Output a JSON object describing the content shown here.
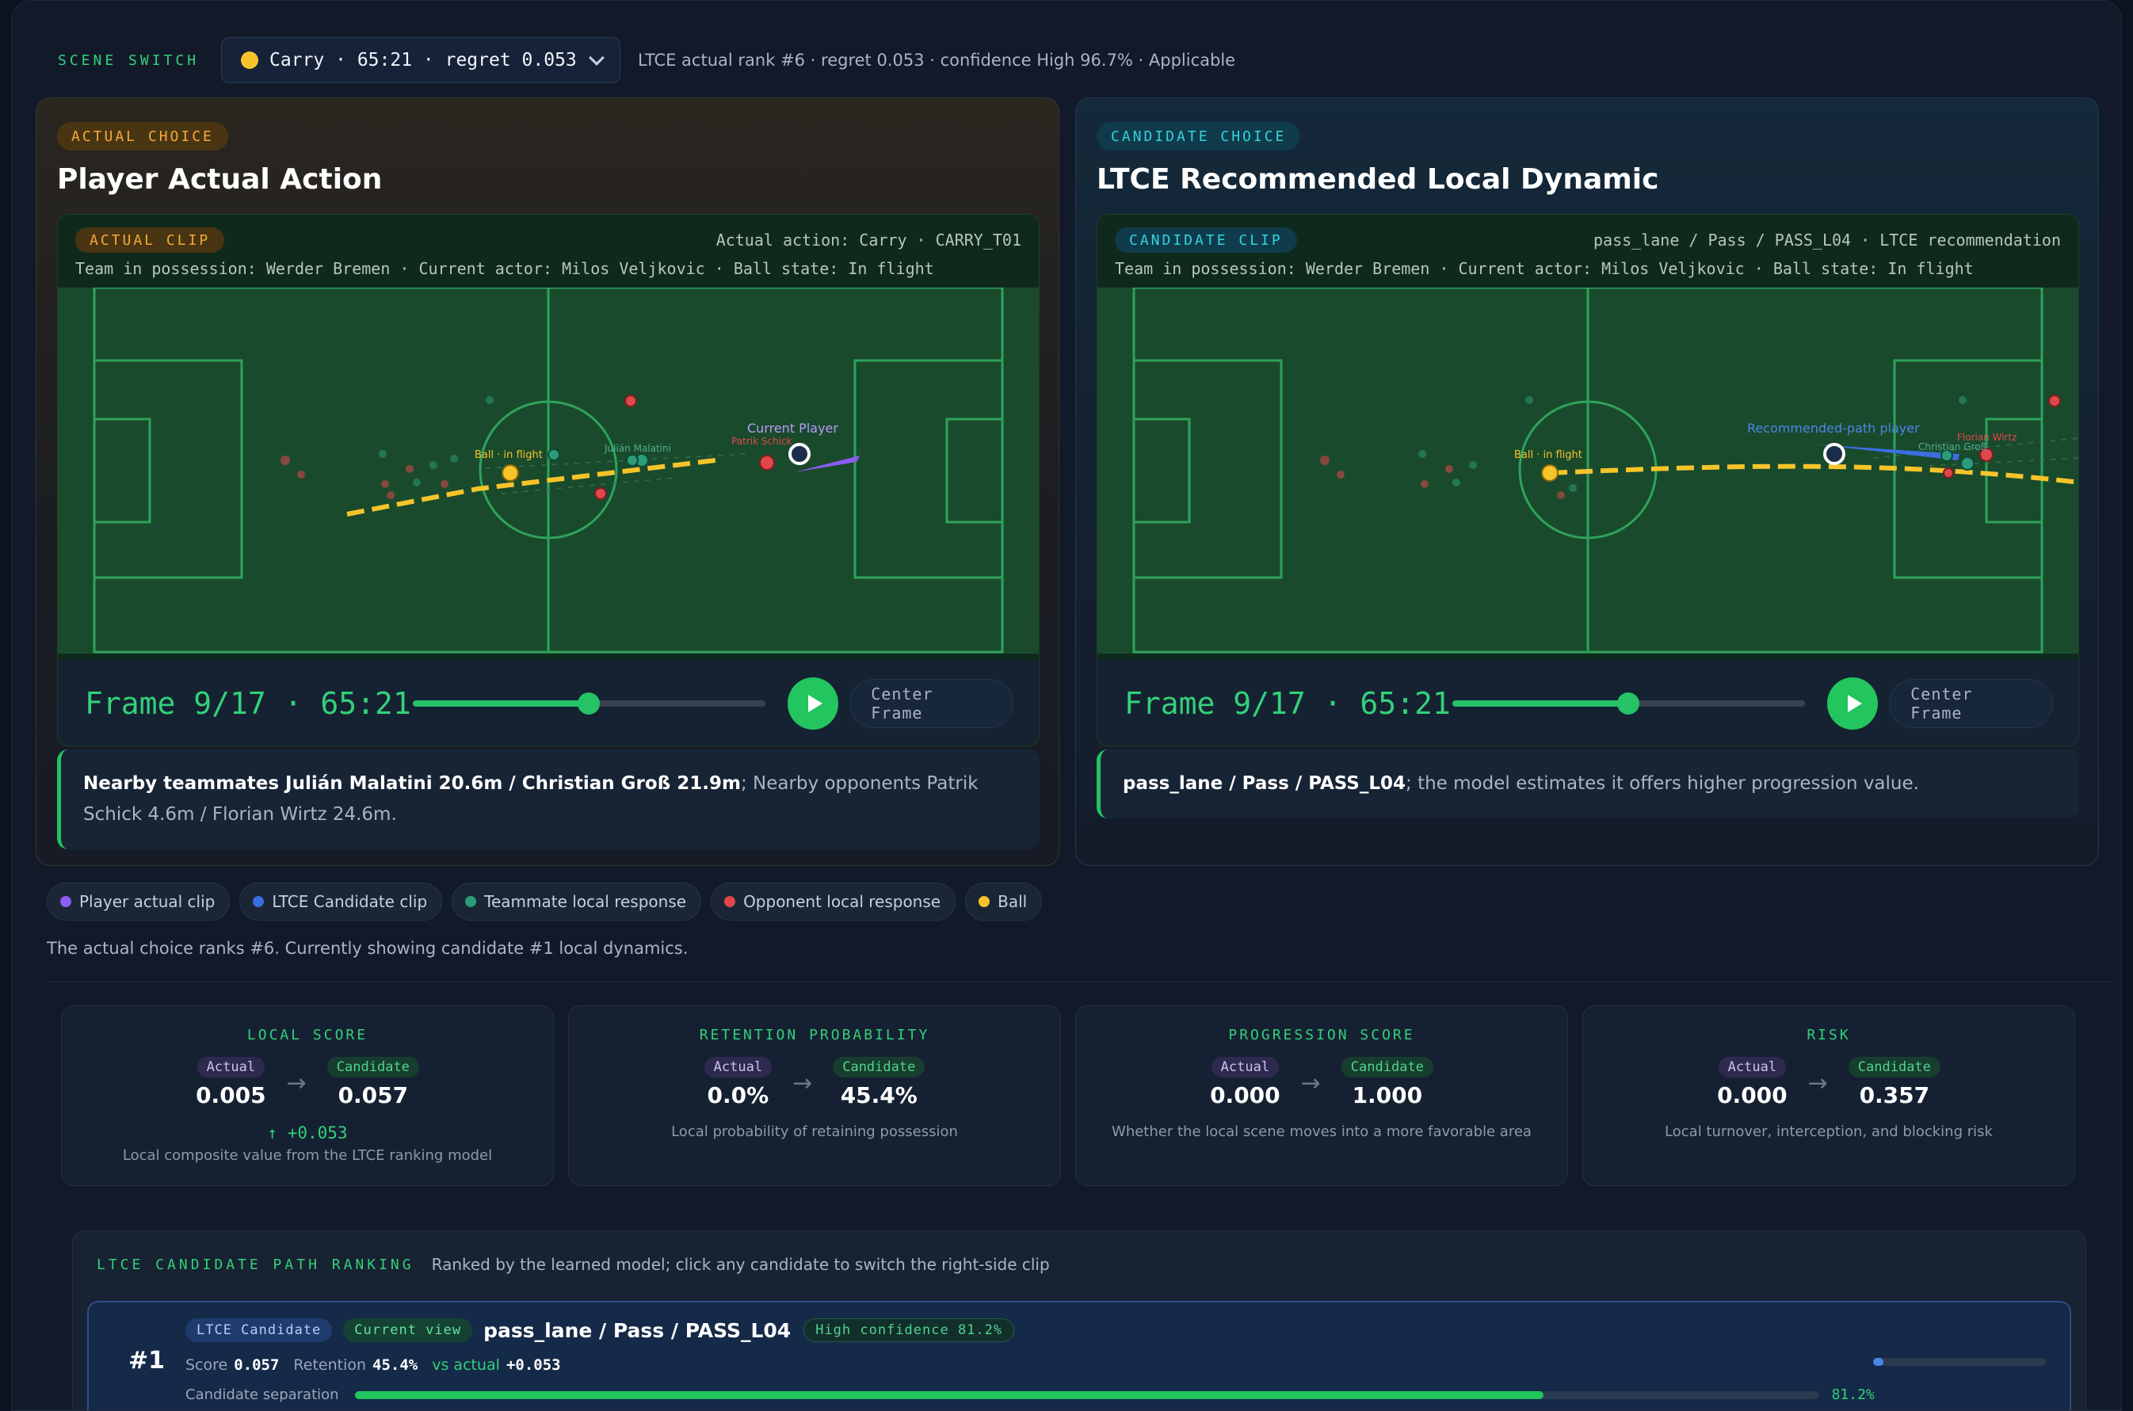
{
  "scene": {
    "label": "SCENE SWITCH",
    "selected": "Carry · 65:21 · regret 0.053",
    "meta": "LTCE actual rank #6 · regret 0.053 · confidence High 96.7% · Applicable"
  },
  "actual_panel": {
    "badge": "ACTUAL CHOICE",
    "title": "Player Actual Action",
    "clip_badge": "ACTUAL CLIP",
    "clip_right": "Actual action: Carry · CARRY_T01",
    "clip_info": "Team in possession: Werder Bremen · Current actor: Milos Veljkovic · Ball state: In flight",
    "pitch_labels": {
      "ball": "Ball · in flight",
      "current_player": "Current Player",
      "teammate": "Julián Malatini",
      "opponent": "Patrik Schick"
    },
    "frame": "Frame 9/17 · 65:21",
    "progress": 0.5,
    "center_label": "Center Frame",
    "note_bold": "Nearby teammates Julián Malatini 20.6m / Christian Groß 21.9m",
    "note_rest": "; Nearby opponents Patrik Schick 4.6m / Florian Wirtz 24.6m."
  },
  "candidate_panel": {
    "badge": "CANDIDATE CHOICE",
    "title": "LTCE Recommended Local Dynamic",
    "clip_badge": "CANDIDATE CLIP",
    "clip_right": "pass_lane / Pass / PASS_L04 · LTCE recommendation",
    "clip_info": "Team in possession: Werder Bremen · Current actor: Milos Veljkovic · Ball state: In flight",
    "pitch_labels": {
      "ball": "Ball · in flight",
      "path_player": "Recommended-path player",
      "opponent": "Florian Wirtz",
      "teammate": "Christian Groß"
    },
    "frame": "Frame 9/17 · 65:21",
    "progress": 0.5,
    "center_label": "Center Frame",
    "note_bold": "pass_lane / Pass / PASS_L04",
    "note_rest": "; the model estimates it offers higher progression value."
  },
  "legend": {
    "items": [
      {
        "label": "Player actual clip",
        "color": "#8b5cf6"
      },
      {
        "label": "LTCE Candidate clip",
        "color": "#3b6fe0"
      },
      {
        "label": "Teammate local response",
        "color": "#2a9d78"
      },
      {
        "label": "Opponent local response",
        "color": "#e0474c"
      },
      {
        "label": "Ball",
        "color": "#f6c42a"
      }
    ],
    "note": "The actual choice ranks #6. Currently showing candidate #1 local dynamics."
  },
  "metrics": [
    {
      "title": "LOCAL SCORE",
      "actual": "0.005",
      "candidate": "0.057",
      "delta": "↑ +0.053",
      "desc": "Local composite value from the LTCE ranking model"
    },
    {
      "title": "RETENTION PROBABILITY",
      "actual": "0.0%",
      "candidate": "45.4%",
      "delta": "",
      "desc": "Local probability of retaining possession"
    },
    {
      "title": "PROGRESSION SCORE",
      "actual": "0.000",
      "candidate": "1.000",
      "delta": "",
      "desc": "Whether the local scene moves into a more favorable area"
    },
    {
      "title": "RISK",
      "actual": "0.000",
      "candidate": "0.357",
      "delta": "",
      "desc": "Local turnover, interception, and blocking risk"
    }
  ],
  "metric_tags": {
    "actual": "Actual",
    "candidate": "Candidate"
  },
  "ranking": {
    "title": "LTCE CANDIDATE PATH RANKING",
    "subtitle": "Ranked by the learned model; click any candidate to switch the right-side clip",
    "items": [
      {
        "rank": "#1",
        "tag1": "LTCE Candidate",
        "tag2": "Current view",
        "name": "pass_lane / Pass / PASS_L04",
        "confidence": "High confidence 81.2%",
        "score_label": "Score",
        "score": "0.057",
        "retention_label": "Retention",
        "retention": "45.4%",
        "vs_label": "vs actual",
        "vs": "+0.053",
        "sep_label": "Candidate separation",
        "sep_value": "81.2%",
        "sep_fraction": 0.812,
        "mini_fraction": 0.06
      }
    ]
  }
}
